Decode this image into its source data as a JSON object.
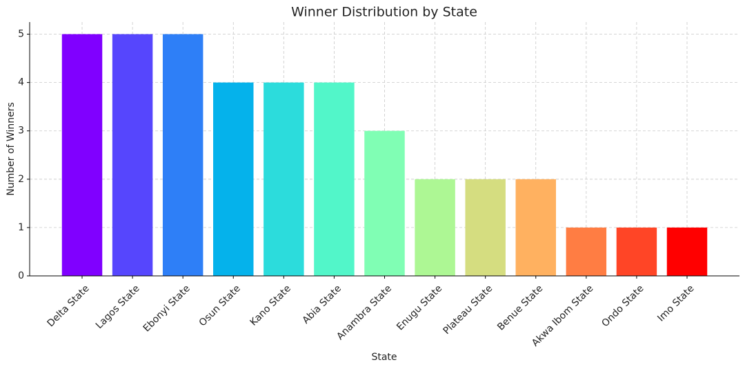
{
  "chart_data": {
    "type": "bar",
    "title": "Winner Distribution by State",
    "x_label": "State",
    "y_label": "Number of Winners",
    "categories": [
      "Delta State",
      "Lagos State",
      "Ebonyi State",
      "Osun State",
      "Kano State",
      "Abia State",
      "Anambra State",
      "Enugu State",
      "Plateau State",
      "Benue State",
      "Akwa Ibom State",
      "Ondo State",
      "Imo State"
    ],
    "values": [
      5,
      5,
      5,
      4,
      4,
      4,
      3,
      2,
      2,
      2,
      1,
      1,
      1
    ],
    "colors": [
      "#8000ff",
      "#5646fd",
      "#2e7ff7",
      "#05b2eb",
      "#2cdcdc",
      "#52f6c9",
      "#80feb4",
      "#adf794",
      "#d5dd80",
      "#ffb160",
      "#ff7d43",
      "#ff4526",
      "#ff0000"
    ],
    "ylim": [
      0,
      5.25
    ],
    "yticks": [
      0,
      1,
      2,
      3,
      4,
      5
    ],
    "grid": true
  }
}
